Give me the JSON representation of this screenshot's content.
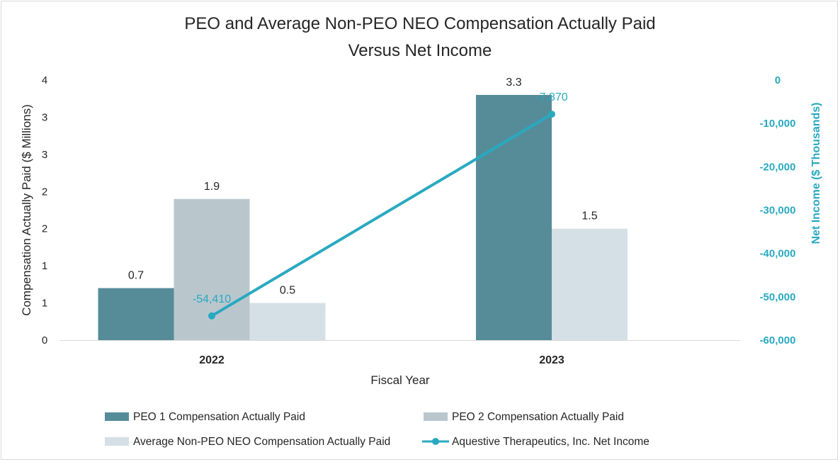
{
  "chart_data": {
    "type": "bar",
    "title": [
      "PEO and Average Non-PEO NEO Compensation Actually Paid",
      "Versus Net Income"
    ],
    "xlabel": "Fiscal Year",
    "ylabel": "Compensation Actually Paid ($ Millions)",
    "y2label": "Net Income ($ Thousands)",
    "categories": [
      "2022",
      "2023"
    ],
    "ylim": [
      0,
      3.5
    ],
    "yticks": [
      0,
      0.5,
      1,
      1.5,
      2,
      2.5,
      3,
      3.5
    ],
    "ytick_labels": [
      "0",
      "1",
      "1",
      "2",
      "2",
      "3",
      "3",
      "4"
    ],
    "y2lim": [
      -60000,
      0
    ],
    "y2ticks": [
      0,
      -10000,
      -20000,
      -30000,
      -40000,
      -50000,
      -60000
    ],
    "y2tick_labels": [
      "0",
      "-10,000",
      "-20,000",
      "-30,000",
      "-40,000",
      "-50,000",
      "-60,000"
    ],
    "series": [
      {
        "name": "PEO 1 Compensation Actually Paid",
        "kind": "bar",
        "color": "#558c98",
        "values": [
          0.7,
          3.3
        ],
        "labels": [
          "0.7",
          "3.3"
        ]
      },
      {
        "name": "PEO 2 Compensation Actually Paid",
        "kind": "bar",
        "color": "#b9c7cd",
        "values": [
          1.9,
          null
        ],
        "labels": [
          "1.9",
          ""
        ]
      },
      {
        "name": "Average Non-PEO NEO Compensation Actually Paid",
        "kind": "bar",
        "color": "#d5e0e6",
        "values": [
          0.5,
          1.5
        ],
        "labels": [
          "0.5",
          "1.5"
        ]
      },
      {
        "name": "Aquestive Therapeutics, Inc. Net Income",
        "kind": "line",
        "axis": "right",
        "color": "#29a9c0",
        "values": [
          -54410,
          -7870
        ],
        "labels": [
          "-54,410",
          "-7,870"
        ]
      }
    ],
    "legend_position": "bottom"
  }
}
